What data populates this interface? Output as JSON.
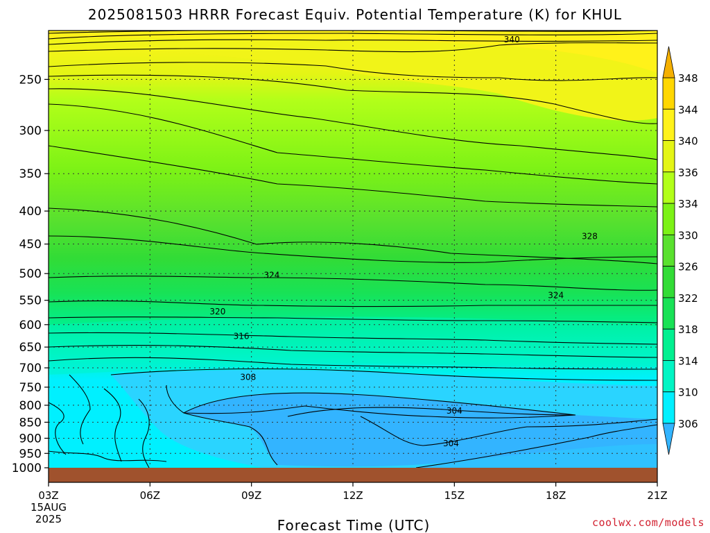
{
  "chart_data": {
    "type": "contour",
    "title": "2025081503 HRRR Forecast Equiv. Potential Temperature (K) for KHUL",
    "xlabel": "Forecast Time (UTC)",
    "x_ticks": [
      "03Z",
      "06Z",
      "09Z",
      "12Z",
      "15Z",
      "18Z",
      "21Z"
    ],
    "x_date_lines": [
      "15AUG",
      "2025"
    ],
    "x_range_hours": [
      3,
      21
    ],
    "y_ticks": [
      250,
      300,
      350,
      400,
      450,
      500,
      550,
      600,
      650,
      700,
      750,
      800,
      850,
      900,
      950,
      1000
    ],
    "y_range_hpa": [
      1000,
      210
    ],
    "y_scale": "log",
    "grid": "dotted",
    "colorbar": {
      "levels": [
        306,
        310,
        314,
        318,
        322,
        326,
        330,
        334,
        336,
        340,
        344,
        348
      ],
      "colors": [
        "#33b4ff",
        "#2ad4ff",
        "#00f0ff",
        "#00f5c4",
        "#00f090",
        "#18e256",
        "#32dc36",
        "#5ae12e",
        "#7cf216",
        "#b2ff19",
        "#e4f515",
        "#fff21a",
        "#ffd700",
        "#f5b000"
      ]
    },
    "contour_labels": [
      {
        "value": "340",
        "x": 16.7,
        "p": 217
      },
      {
        "value": "328",
        "x": 19.0,
        "p": 438
      },
      {
        "value": "324",
        "x": 9.6,
        "p": 503
      },
      {
        "value": "324",
        "x": 18.0,
        "p": 540
      },
      {
        "value": "320",
        "x": 8.0,
        "p": 573
      },
      {
        "value": "316",
        "x": 8.7,
        "p": 625
      },
      {
        "value": "308",
        "x": 8.9,
        "p": 724
      },
      {
        "value": "304",
        "x": 15.0,
        "p": 816
      },
      {
        "value": "304",
        "x": 14.9,
        "p": 917
      }
    ],
    "surface_color": "#a0522d"
  },
  "credit": "coolwx.com/models"
}
